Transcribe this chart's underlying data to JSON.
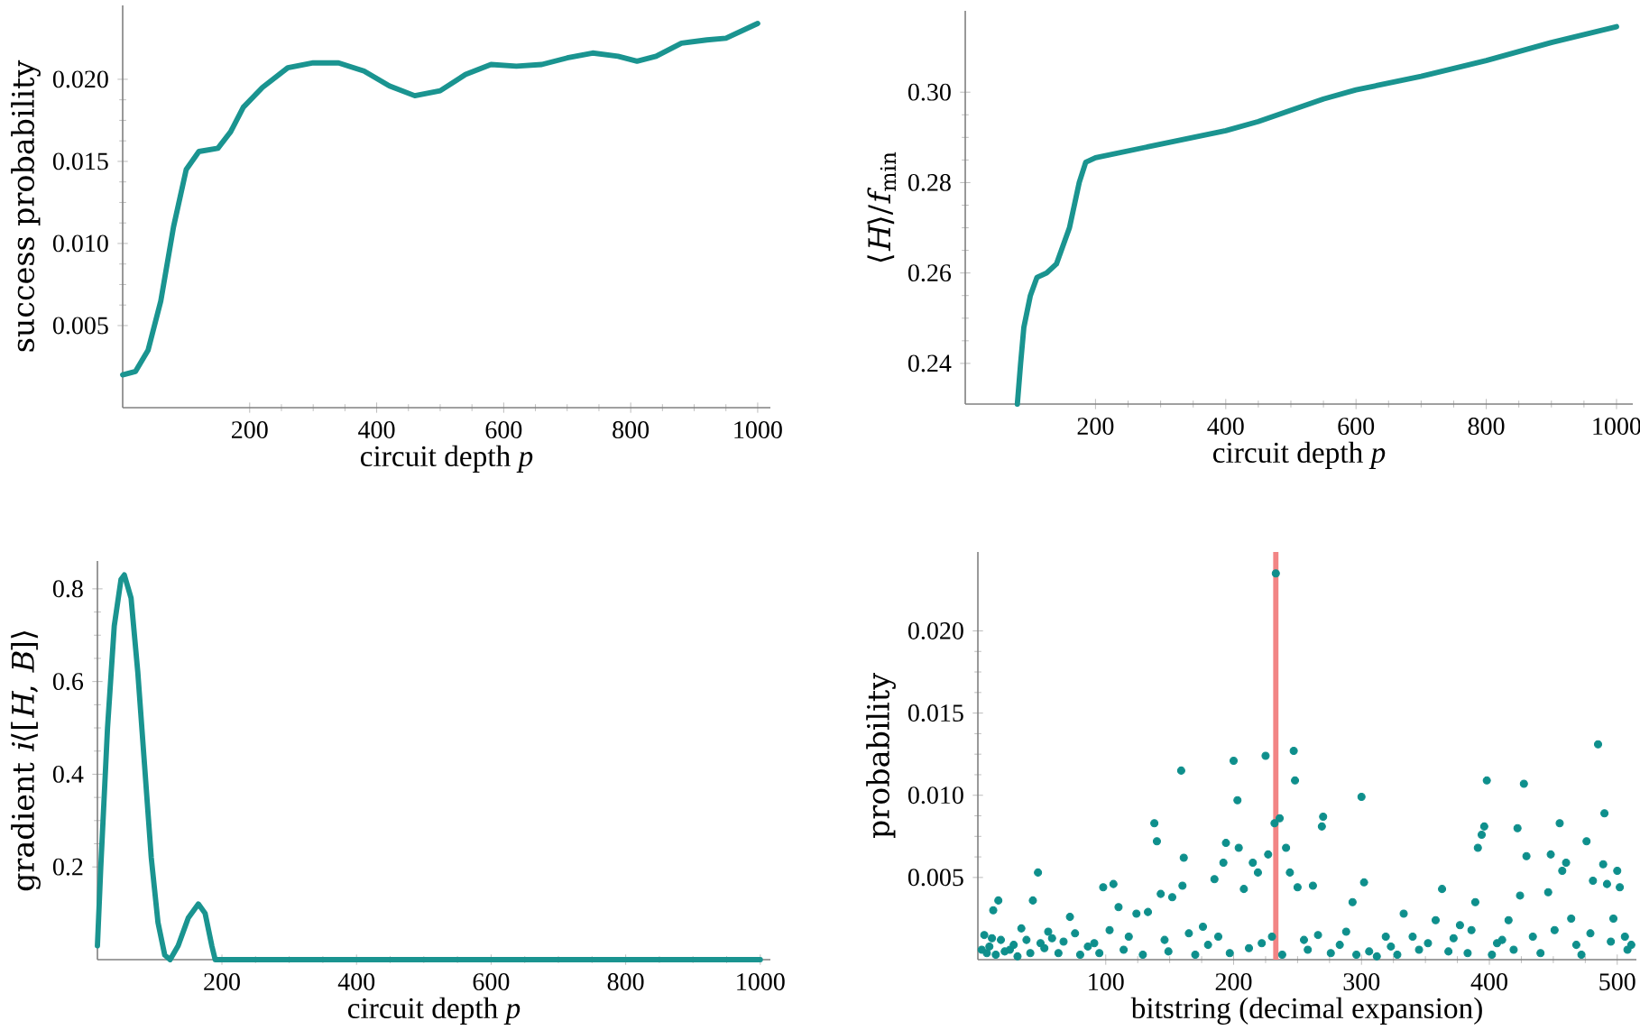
{
  "chart_data": [
    {
      "type": "line",
      "xlabel": "circuit depth *p*",
      "ylabel": "success probability",
      "color": "#1a9490",
      "x": [
        0,
        20,
        40,
        60,
        80,
        100,
        120,
        150,
        170,
        190,
        220,
        260,
        300,
        340,
        380,
        420,
        460,
        500,
        540,
        580,
        620,
        660,
        700,
        740,
        780,
        810,
        840,
        880,
        920,
        950,
        1000
      ],
      "values": [
        0.002,
        0.0022,
        0.0035,
        0.0065,
        0.011,
        0.0145,
        0.0156,
        0.0158,
        0.0168,
        0.0183,
        0.0195,
        0.0207,
        0.021,
        0.021,
        0.0205,
        0.0196,
        0.019,
        0.0193,
        0.0203,
        0.0209,
        0.0208,
        0.0209,
        0.0213,
        0.0216,
        0.0214,
        0.0211,
        0.0214,
        0.0222,
        0.0224,
        0.0225,
        0.0234
      ],
      "xlim": [
        0,
        1020
      ],
      "ylim": [
        0,
        0.0245
      ],
      "xticks": [
        200,
        400,
        600,
        800,
        1000
      ],
      "yticks": [
        0.005,
        {
          "value": 0.01,
          "label": "0.010"
        },
        0.015,
        {
          "value": 0.02,
          "label": "0.020"
        }
      ]
    },
    {
      "type": "line",
      "xlabel": "circuit depth *p*",
      "ylabel": "⟨*H*⟩/*f*$_{min}$",
      "color": "#1a9490",
      "x": [
        80,
        85,
        90,
        100,
        110,
        125,
        140,
        160,
        175,
        185,
        200,
        300,
        400,
        450,
        500,
        550,
        600,
        700,
        800,
        900,
        1000
      ],
      "values": [
        0.231,
        0.24,
        0.248,
        0.255,
        0.259,
        0.26,
        0.262,
        0.27,
        0.28,
        0.2845,
        0.2855,
        0.2885,
        0.2915,
        0.2935,
        0.296,
        0.2985,
        0.3005,
        0.3035,
        0.307,
        0.311,
        0.3145
      ],
      "xlim": [
        0,
        1025
      ],
      "ylim": [
        0.231,
        0.318
      ],
      "xticks": [
        200,
        400,
        600,
        800,
        1000
      ],
      "yticks": [
        0.24,
        0.26,
        0.28,
        {
          "value": 0.3,
          "label": "0.30"
        }
      ]
    },
    {
      "type": "line",
      "xlabel": "circuit depth *p*",
      "ylabel": "gradient *i*⟨[*H*, *B*]⟩",
      "color": "#1a9490",
      "x": [
        15,
        20,
        30,
        40,
        50,
        55,
        65,
        75,
        85,
        95,
        105,
        115,
        123,
        135,
        150,
        165,
        175,
        185,
        190,
        250,
        400,
        600,
        800,
        1000
      ],
      "values": [
        0.03,
        0.2,
        0.5,
        0.72,
        0.82,
        0.83,
        0.78,
        0.62,
        0.42,
        0.22,
        0.08,
        0.01,
        0.0,
        0.03,
        0.09,
        0.12,
        0.1,
        0.03,
        0.0,
        0.0,
        0.0,
        0.0,
        0.0,
        0.0
      ],
      "xlim": [
        15,
        1015
      ],
      "ylim": [
        0,
        0.86
      ],
      "xticks": [
        200,
        400,
        600,
        800,
        1000
      ],
      "yticks": [
        0.2,
        0.4,
        0.6,
        0.8
      ]
    },
    {
      "type": "scatter",
      "xlabel": "bitstring (decimal expansion)",
      "ylabel": "probability",
      "color": "#0e8f8c",
      "x": [
        7,
        11,
        12,
        16,
        25,
        34,
        43,
        47,
        49,
        58,
        72,
        86,
        98,
        106,
        110,
        124,
        133,
        138,
        140,
        143,
        152,
        159,
        160,
        161,
        176,
        185,
        192,
        194,
        200,
        203,
        204,
        208,
        215,
        219,
        225,
        227,
        232,
        233,
        236,
        241,
        244,
        247,
        248,
        250,
        262,
        269,
        270,
        293,
        300,
        302,
        319,
        333,
        363,
        377,
        389,
        391,
        394,
        396,
        398,
        406,
        422,
        424,
        427,
        429,
        446,
        448,
        455,
        457,
        460,
        464,
        476,
        481,
        485,
        489,
        490,
        492,
        497,
        500,
        502,
        506,
        508,
        3,
        5,
        9,
        14,
        18,
        21,
        28,
        31,
        38,
        41,
        52,
        55,
        63,
        67,
        76,
        80,
        91,
        95,
        103,
        114,
        118,
        129,
        146,
        149,
        165,
        170,
        180,
        188,
        197,
        212,
        222,
        230,
        238,
        255,
        258,
        266,
        276,
        283,
        288,
        296,
        306,
        312,
        323,
        328,
        340,
        345,
        352,
        358,
        368,
        372,
        383,
        386,
        402,
        410,
        415,
        419,
        434,
        440,
        451,
        468,
        472,
        479,
        495,
        511
      ],
      "values": [
        0.0004,
        0.0013,
        0.003,
        0.0036,
        0.0006,
        0.0019,
        0.0036,
        0.0053,
        0.001,
        0.0013,
        0.0026,
        0.0008,
        0.0044,
        0.0046,
        0.0032,
        0.0028,
        0.0029,
        0.0083,
        0.0072,
        0.004,
        0.0038,
        0.0115,
        0.0045,
        0.0062,
        0.002,
        0.0049,
        0.0059,
        0.0071,
        0.0121,
        0.0097,
        0.0068,
        0.0043,
        0.0059,
        0.0053,
        0.0124,
        0.0064,
        0.0083,
        0.0235,
        0.0086,
        0.0068,
        0.0053,
        0.0127,
        0.0109,
        0.0044,
        0.0045,
        0.0081,
        0.0087,
        0.0035,
        0.0099,
        0.0047,
        0.0014,
        0.0028,
        0.0043,
        0.0021,
        0.0035,
        0.0068,
        0.0076,
        0.0081,
        0.0109,
        0.001,
        0.008,
        0.0039,
        0.0107,
        0.0063,
        0.0041,
        0.0064,
        0.0083,
        0.0054,
        0.0059,
        0.0025,
        0.0072,
        0.0048,
        0.0131,
        0.0058,
        0.0089,
        0.0046,
        0.0025,
        0.0054,
        0.0044,
        0.0014,
        0.0006,
        0.0006,
        0.0015,
        0.0008,
        0.0003,
        0.0012,
        0.0005,
        0.0009,
        0.0002,
        0.0012,
        0.0004,
        0.0007,
        0.0017,
        0.0004,
        0.0011,
        0.0016,
        0.0003,
        0.001,
        0.0004,
        0.0018,
        0.0006,
        0.0014,
        0.0003,
        0.0012,
        0.0005,
        0.0016,
        0.0003,
        0.0009,
        0.0014,
        0.0004,
        0.0007,
        0.001,
        0.0014,
        0.0003,
        0.0012,
        0.0006,
        0.0015,
        0.0004,
        0.0009,
        0.0017,
        0.0003,
        0.0005,
        0.0002,
        0.0008,
        0.0003,
        0.0014,
        0.0006,
        0.001,
        0.0024,
        0.0005,
        0.0013,
        0.0004,
        0.0018,
        0.0003,
        0.0012,
        0.0024,
        0.0006,
        0.0014,
        0.0004,
        0.0018,
        0.0009,
        0.0003,
        0.0016,
        0.0011,
        0.0009
      ],
      "xlim": [
        0,
        515
      ],
      "ylim": [
        0,
        0.0248
      ],
      "xticks": [
        100,
        200,
        300,
        400,
        500
      ],
      "yticks": [
        0.005,
        {
          "value": 0.01,
          "label": "0.010"
        },
        0.015,
        {
          "value": 0.02,
          "label": "0.020"
        }
      ],
      "ref_lines": [
        {
          "axis": "x",
          "value": 233,
          "color": "#f28585"
        }
      ]
    }
  ]
}
